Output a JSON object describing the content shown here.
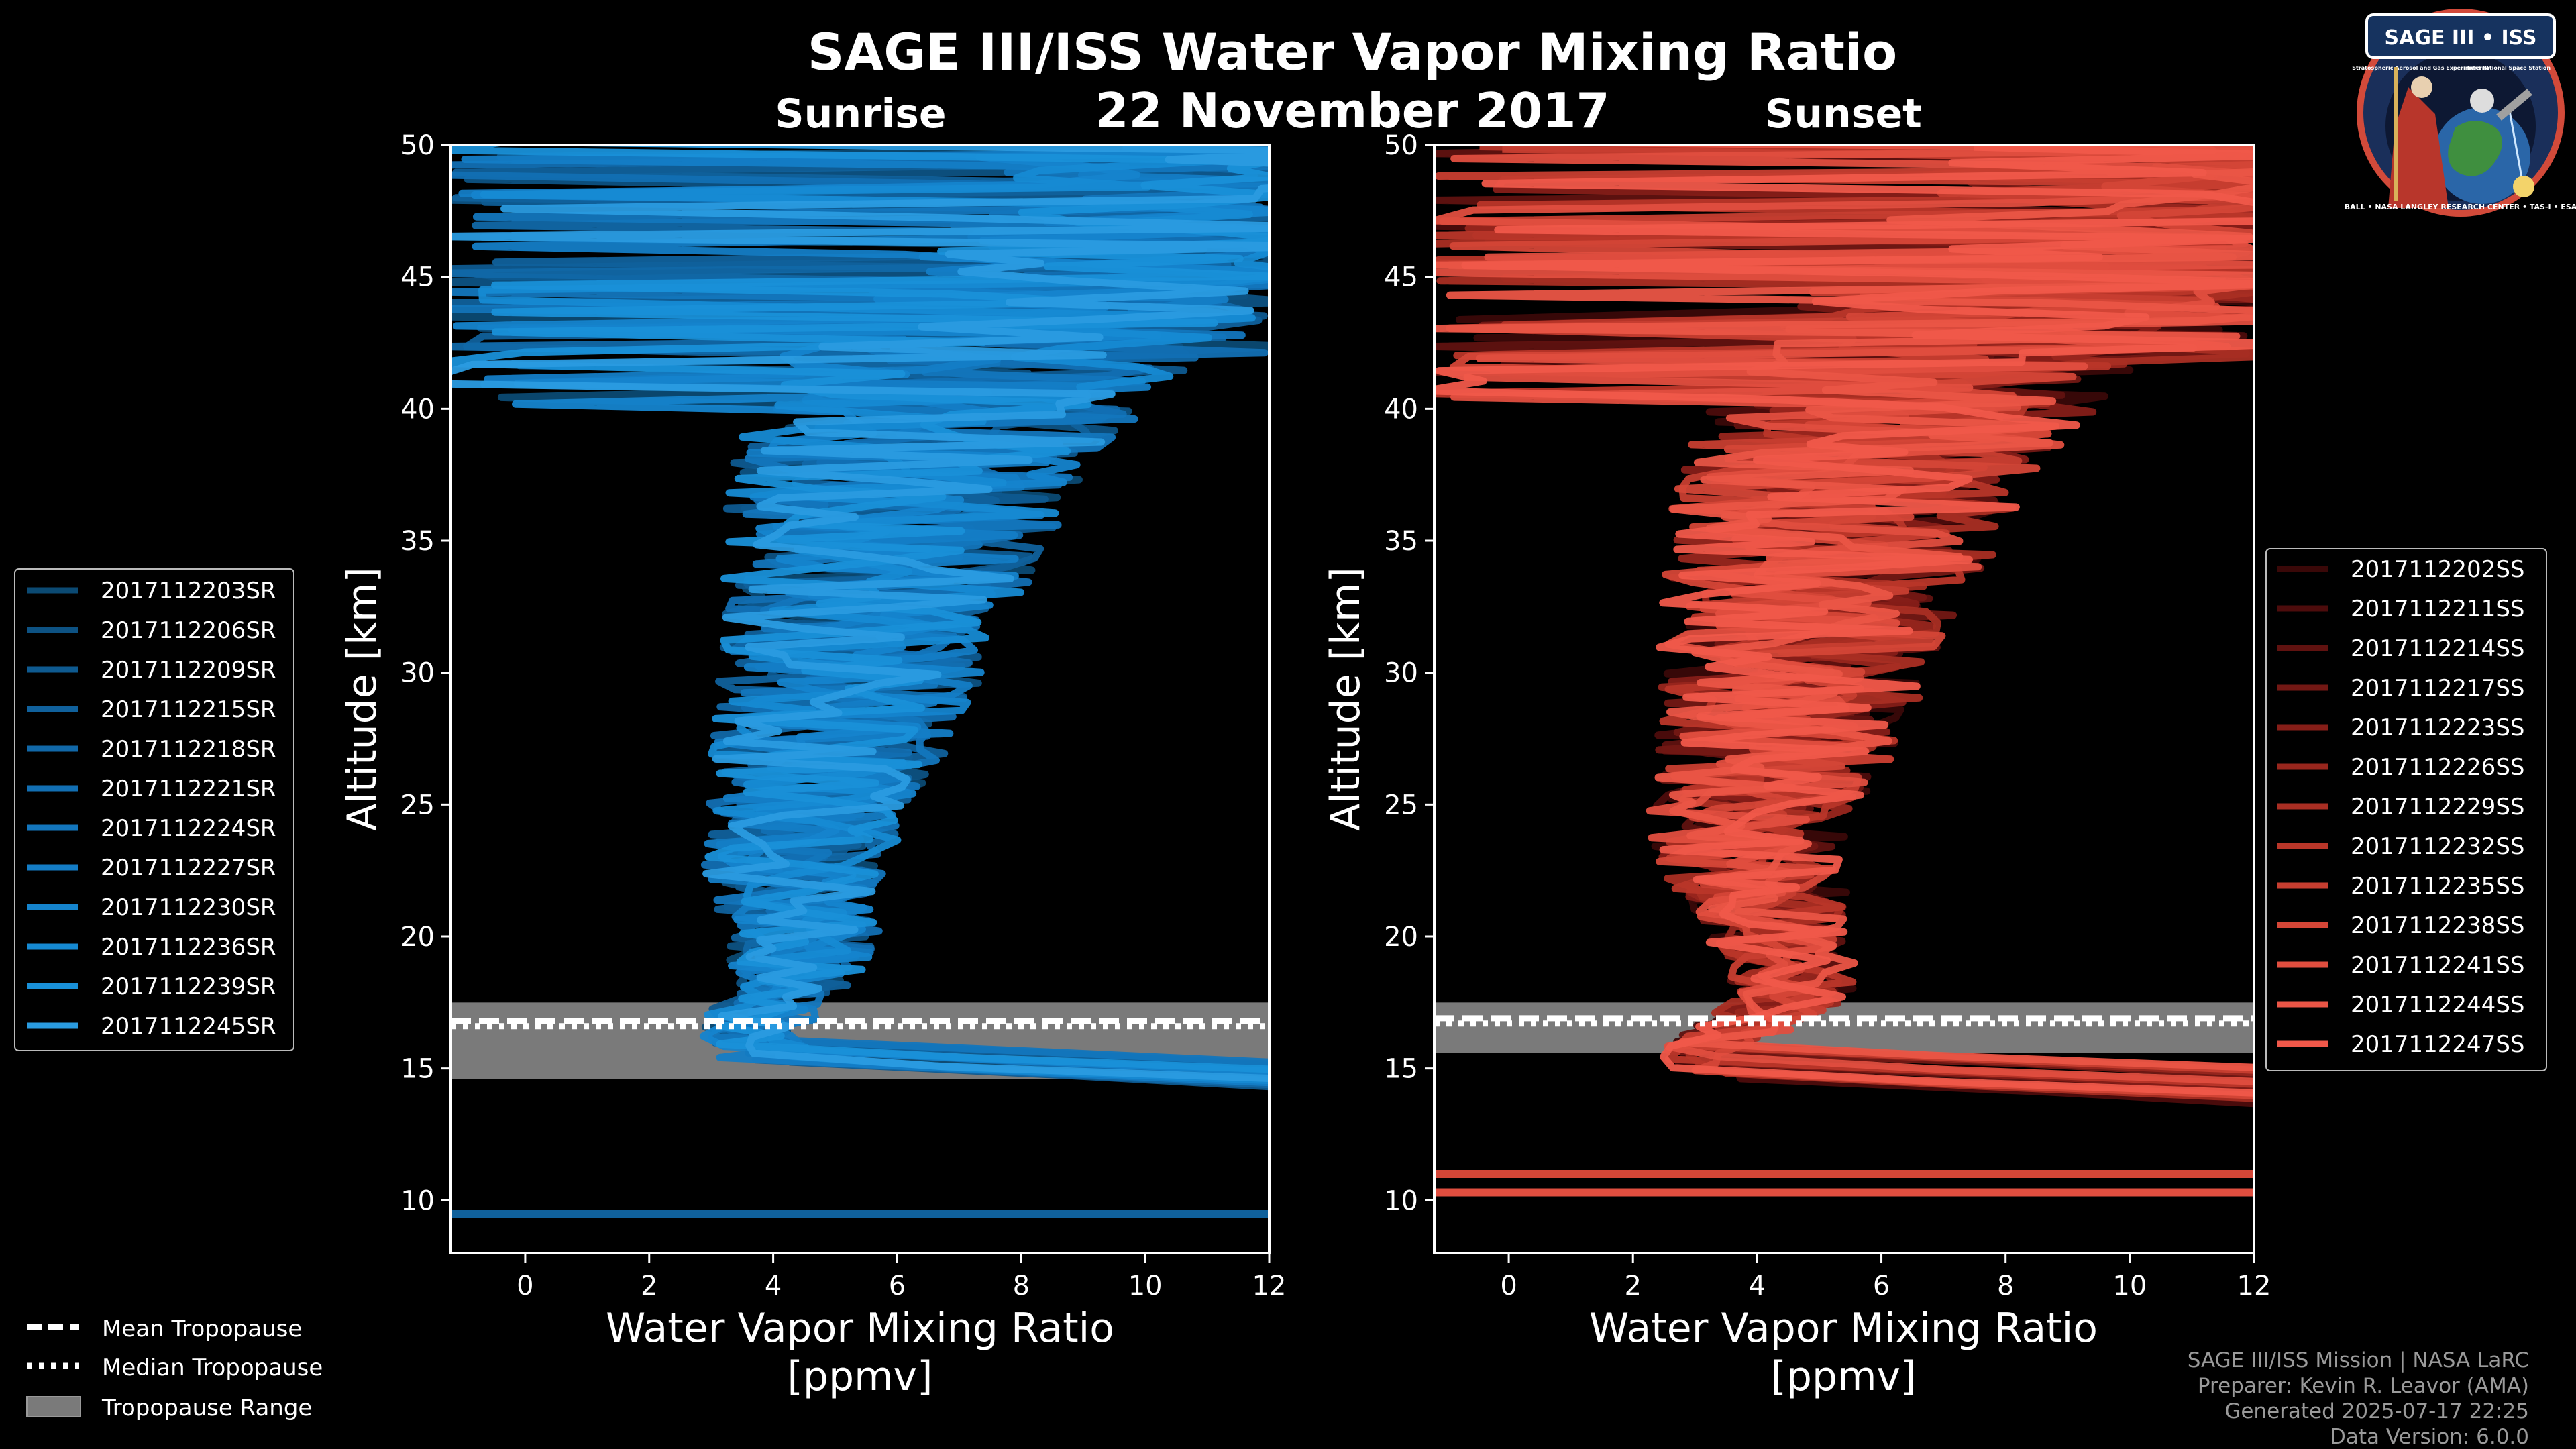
{
  "title": "SAGE III/ISS Water Vapor Mixing Ratio",
  "date": "22 November 2017",
  "colors": {
    "sunrise": "#1a8fd6",
    "sunset": "#f0584a",
    "tropo_band": "#7a7a7a",
    "background": "#000000"
  },
  "badge": {
    "title": "SAGE III • ISS",
    "ring_text": "BALL • NASA LANGLEY RESEARCH CENTER • TAS-I • ESA",
    "sub_left": "Stratospheric Aerosol and Gas Experiment III",
    "sub_right": "International Space Station"
  },
  "legend_tropopause": {
    "items": [
      "Mean Tropopause",
      "Median Tropopause",
      "Tropopause Range"
    ]
  },
  "credits": [
    "SAGE III/ISS Mission | NASA LaRC",
    "Preparer: Kevin R. Leavor (AMA)",
    "Generated 2025-07-17 22:25",
    "Data Version: 6.0.0"
  ],
  "chart_data": [
    {
      "type": "line",
      "subtitle": "Sunrise",
      "xlabel": "Water Vapor Mixing Ratio",
      "xunit": "[ppmv]",
      "ylabel": "Altitude [km]",
      "xlim": [
        -1.2,
        12
      ],
      "ylim": [
        8,
        50
      ],
      "xticks": [
        0,
        2,
        4,
        6,
        8,
        10,
        12
      ],
      "yticks": [
        10,
        15,
        20,
        25,
        30,
        35,
        40,
        45,
        50
      ],
      "tropopause": {
        "mean": 16.8,
        "median": 16.6,
        "range": [
          14.6,
          17.5
        ]
      },
      "series": [
        {
          "name": "2017112203SR",
          "color": "#0b4a73",
          "seed": 3
        },
        {
          "name": "2017112206SR",
          "color": "#0d5283",
          "seed": 6
        },
        {
          "name": "2017112209SR",
          "color": "#0e5a90",
          "seed": 9
        },
        {
          "name": "2017112215SR",
          "color": "#10619c",
          "seed": 15
        },
        {
          "name": "2017112218SR",
          "color": "#1168a8",
          "seed": 18
        },
        {
          "name": "2017112221SR",
          "color": "#126fb3",
          "seed": 21
        },
        {
          "name": "2017112224SR",
          "color": "#1376bd",
          "seed": 24
        },
        {
          "name": "2017112227SR",
          "color": "#147dc6",
          "seed": 27
        },
        {
          "name": "2017112230SR",
          "color": "#1584cd",
          "seed": 30
        },
        {
          "name": "2017112236SR",
          "color": "#168ad3",
          "seed": 36
        },
        {
          "name": "2017112239SR",
          "color": "#1990d8",
          "seed": 39
        },
        {
          "name": "2017112245SR",
          "color": "#2a9be0",
          "seed": 45
        }
      ],
      "trend_profile": [
        [
          4.0,
          15.0
        ],
        [
          3.6,
          16.5
        ],
        [
          4.3,
          18
        ],
        [
          4.5,
          20
        ],
        [
          4.3,
          22
        ],
        [
          4.5,
          24
        ],
        [
          4.8,
          26
        ],
        [
          5.0,
          28
        ],
        [
          5.3,
          30
        ],
        [
          5.5,
          32
        ],
        [
          5.7,
          34
        ],
        [
          6.0,
          36
        ],
        [
          6.3,
          38
        ],
        [
          6.8,
          40
        ],
        [
          7.5,
          42
        ],
        [
          8.5,
          44
        ],
        [
          9.5,
          46
        ],
        [
          10.5,
          48
        ],
        [
          11.5,
          50
        ]
      ]
    },
    {
      "type": "line",
      "subtitle": "Sunset",
      "xlabel": "Water Vapor Mixing Ratio",
      "xunit": "[ppmv]",
      "ylabel": "Altitude [km]",
      "xlim": [
        -1.2,
        12
      ],
      "ylim": [
        8,
        50
      ],
      "xticks": [
        0,
        2,
        4,
        6,
        8,
        10,
        12
      ],
      "yticks": [
        10,
        15,
        20,
        25,
        30,
        35,
        40,
        45,
        50
      ],
      "tropopause": {
        "mean": 16.9,
        "median": 16.7,
        "range": [
          15.6,
          17.5
        ]
      },
      "series": [
        {
          "name": "2017112202SS",
          "color": "#3a0808",
          "seed": 2
        },
        {
          "name": "2017112211SS",
          "color": "#4d0c0c",
          "seed": 11
        },
        {
          "name": "2017112214SS",
          "color": "#601210",
          "seed": 14
        },
        {
          "name": "2017112217SS",
          "color": "#731814",
          "seed": 17
        },
        {
          "name": "2017112223SS",
          "color": "#861e18",
          "seed": 23
        },
        {
          "name": "2017112226SS",
          "color": "#98261d",
          "seed": 26
        },
        {
          "name": "2017112229SS",
          "color": "#a92e23",
          "seed": 29
        },
        {
          "name": "2017112232SS",
          "color": "#b93629",
          "seed": 32
        },
        {
          "name": "2017112235SS",
          "color": "#c73e30",
          "seed": 35
        },
        {
          "name": "2017112238SS",
          "color": "#d44637",
          "seed": 38
        },
        {
          "name": "2017112241SS",
          "color": "#e04e3f",
          "seed": 41
        },
        {
          "name": "2017112244SS",
          "color": "#ea5546",
          "seed": 44
        },
        {
          "name": "2017112247SS",
          "color": "#f0584a",
          "seed": 47
        }
      ],
      "trend_profile": [
        [
          3.2,
          15.6
        ],
        [
          4.0,
          16.8
        ],
        [
          4.6,
          18
        ],
        [
          4.4,
          20
        ],
        [
          4.0,
          22
        ],
        [
          3.8,
          24
        ],
        [
          4.2,
          26
        ],
        [
          4.4,
          28
        ],
        [
          4.6,
          30
        ],
        [
          4.8,
          32
        ],
        [
          5.1,
          34
        ],
        [
          5.4,
          36
        ],
        [
          5.8,
          38
        ],
        [
          6.3,
          40
        ],
        [
          7.0,
          42
        ],
        [
          8.0,
          44
        ],
        [
          9.0,
          46
        ],
        [
          10.2,
          48
        ],
        [
          11.5,
          50
        ]
      ],
      "extra_levels": [
        {
          "y": 11.0
        },
        {
          "y": 10.3
        }
      ]
    }
  ]
}
